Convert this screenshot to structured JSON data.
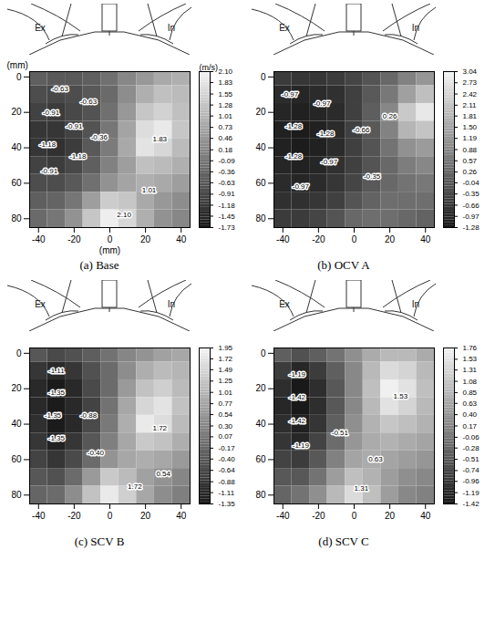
{
  "chart_data": [
    {
      "type": "heatmap",
      "title": "(a) Base",
      "x_label": "(mm)",
      "y_label": "(mm)",
      "valve_labels": [
        "Ex",
        "In"
      ],
      "xlim": [
        -45,
        45
      ],
      "xticks": [
        -40,
        -20,
        0,
        20,
        40
      ],
      "ylim": [
        -3,
        85
      ],
      "yticks": [
        0,
        20,
        40,
        60,
        80
      ],
      "cells": {
        "x": [
          -40,
          -30,
          -20,
          -10,
          0,
          10,
          20,
          30,
          40
        ],
        "y": [
          0,
          10,
          20,
          30,
          40,
          50,
          60,
          70,
          80
        ],
        "values": [
          [
            -0.5,
            -0.6,
            -0.6,
            -0.5,
            -0.2,
            0.2,
            0.5,
            0.8,
            0.9
          ],
          [
            -0.8,
            -0.9,
            -0.8,
            -0.6,
            -0.3,
            0.3,
            0.9,
            1.2,
            1.1
          ],
          [
            -1.0,
            -1.1,
            -0.9,
            -0.7,
            -0.2,
            0.5,
            1.3,
            1.5,
            1.2
          ],
          [
            -1.2,
            -1.2,
            -1.0,
            -0.7,
            -0.1,
            0.7,
            1.7,
            1.9,
            1.3
          ],
          [
            -1.2,
            -1.3,
            -1.1,
            -0.6,
            0.0,
            0.8,
            1.8,
            1.6,
            1.1
          ],
          [
            -1.0,
            -1.1,
            -0.9,
            -0.5,
            0.1,
            0.6,
            1.2,
            1.1,
            0.9
          ],
          [
            -0.8,
            -0.8,
            -0.6,
            -0.2,
            0.4,
            0.7,
            0.9,
            0.8,
            0.6
          ],
          [
            -0.5,
            -0.4,
            -0.1,
            0.6,
            1.4,
            1.3,
            0.8,
            0.5,
            0.3
          ],
          [
            -0.3,
            -0.1,
            0.4,
            1.3,
            2.0,
            1.6,
            0.9,
            0.4,
            0.2
          ]
        ]
      },
      "colorbar": {
        "label": "(m/s)",
        "lim": [
          -1.73,
          2.1
        ],
        "ticks": [
          {
            "value": 2.1,
            "label": "2.10"
          },
          1.83,
          1.55,
          1.28,
          1.01,
          0.73,
          0.46,
          0.18,
          -0.09,
          -0.36,
          -0.63,
          -0.91,
          -1.18,
          -1.45,
          -1.73
        ]
      },
      "labels": [
        {
          "x": -28,
          "y": 7,
          "text": "-0.63"
        },
        {
          "x": -12,
          "y": 14,
          "text": "-0.63"
        },
        {
          "x": -33,
          "y": 20,
          "text": "-0.91"
        },
        {
          "x": -20,
          "y": 28,
          "text": "-0.91"
        },
        {
          "x": -35,
          "y": 38,
          "text": "-1.18"
        },
        {
          "x": -18,
          "y": 45,
          "text": "-1.18"
        },
        {
          "x": -34,
          "y": 53,
          "text": "-0.91"
        },
        {
          "x": -6,
          "y": 34,
          "text": "-0.36"
        },
        {
          "x": 28,
          "y": 35,
          "text": "1.83"
        },
        {
          "x": 22,
          "y": 64,
          "text": "1.01"
        },
        {
          "x": 8,
          "y": 78,
          "text": "2.10"
        }
      ]
    },
    {
      "type": "heatmap",
      "title": "(b) OCV A",
      "valve_labels": [
        "Ex",
        "In"
      ],
      "xlim": [
        -45,
        45
      ],
      "xticks": [
        -40,
        -20,
        0,
        20,
        40
      ],
      "ylim": [
        -3,
        85
      ],
      "yticks": [
        0,
        20,
        40,
        60,
        80
      ],
      "cells": {
        "x": [
          -40,
          -30,
          -20,
          -10,
          0,
          10,
          20,
          30,
          40
        ],
        "y": [
          0,
          10,
          20,
          30,
          40,
          50,
          60,
          70,
          80
        ],
        "values": [
          [
            -0.6,
            -0.7,
            -0.7,
            -0.6,
            -0.4,
            -0.1,
            0.3,
            0.8,
            1.2
          ],
          [
            -0.9,
            -1.0,
            -0.9,
            -0.8,
            -0.5,
            0.0,
            0.6,
            1.4,
            2.0
          ],
          [
            -1.0,
            -1.1,
            -1.0,
            -0.9,
            -0.5,
            0.1,
            0.9,
            2.2,
            2.8
          ],
          [
            -1.1,
            -1.2,
            -1.1,
            -0.9,
            -0.5,
            0.0,
            0.8,
            1.8,
            2.1
          ],
          [
            -1.1,
            -1.2,
            -1.1,
            -0.9,
            -0.5,
            -0.1,
            0.5,
            1.1,
            1.3
          ],
          [
            -1.0,
            -1.1,
            -1.0,
            -0.8,
            -0.5,
            -0.1,
            0.3,
            0.7,
            0.9
          ],
          [
            -0.9,
            -1.0,
            -0.9,
            -0.7,
            -0.4,
            0.0,
            0.3,
            0.5,
            0.6
          ],
          [
            -0.8,
            -0.8,
            -0.7,
            -0.5,
            -0.1,
            0.2,
            0.4,
            0.4,
            0.4
          ],
          [
            -0.6,
            -0.6,
            -0.4,
            -0.1,
            0.3,
            0.4,
            0.4,
            0.3,
            0.2
          ]
        ]
      },
      "colorbar": {
        "lim": [
          -1.28,
          3.04
        ],
        "ticks": [
          3.04,
          2.73,
          2.42,
          2.11,
          1.81,
          {
            "value": 1.5,
            "label": "1.50"
          },
          1.19,
          0.88,
          0.57,
          0.26,
          -0.04,
          -0.35,
          -0.66,
          -0.97,
          -1.28
        ]
      },
      "labels": [
        {
          "x": -36,
          "y": 10,
          "text": "-0.97"
        },
        {
          "x": -18,
          "y": 15,
          "text": "-0.97"
        },
        {
          "x": -34,
          "y": 28,
          "text": "-1.28"
        },
        {
          "x": -16,
          "y": 32,
          "text": "-1.28"
        },
        {
          "x": -34,
          "y": 45,
          "text": "-1.28"
        },
        {
          "x": -14,
          "y": 48,
          "text": "-0.97"
        },
        {
          "x": 4,
          "y": 30,
          "text": "-0.66"
        },
        {
          "x": 20,
          "y": 22,
          "text": "0.26"
        },
        {
          "x": -30,
          "y": 62,
          "text": "-0.97"
        },
        {
          "x": 10,
          "y": 56,
          "text": "-0.35"
        }
      ]
    },
    {
      "type": "heatmap",
      "title": "(c) SCV B",
      "valve_labels": [
        "Ex",
        "In"
      ],
      "xlim": [
        -45,
        45
      ],
      "xticks": [
        -40,
        -20,
        0,
        20,
        40
      ],
      "ylim": [
        -3,
        85
      ],
      "yticks": [
        0,
        20,
        40,
        60,
        80
      ],
      "cells": {
        "x": [
          -40,
          -30,
          -20,
          -10,
          0,
          10,
          20,
          30,
          40
        ],
        "y": [
          0,
          10,
          20,
          30,
          40,
          50,
          60,
          70,
          80
        ],
        "values": [
          [
            -0.4,
            -0.6,
            -0.5,
            -0.3,
            0.0,
            0.3,
            0.5,
            0.7,
            0.8
          ],
          [
            -0.9,
            -1.1,
            -0.9,
            -0.5,
            -0.1,
            0.4,
            0.9,
            1.1,
            1.0
          ],
          [
            -1.1,
            -1.3,
            -1.1,
            -0.6,
            -0.1,
            0.6,
            1.2,
            1.4,
            1.1
          ],
          [
            -1.1,
            -1.3,
            -1.1,
            -0.7,
            0.0,
            0.8,
            1.5,
            1.7,
            1.2
          ],
          [
            -1.0,
            -1.3,
            -1.1,
            -0.6,
            0.1,
            0.9,
            1.8,
            1.6,
            1.1
          ],
          [
            -0.9,
            -1.2,
            -0.9,
            -0.4,
            0.2,
            0.8,
            1.3,
            1.2,
            0.9
          ],
          [
            -0.7,
            -0.9,
            -0.6,
            -0.1,
            0.5,
            0.8,
            0.9,
            0.8,
            0.6
          ],
          [
            -0.4,
            -0.5,
            -0.1,
            0.6,
            1.3,
            1.1,
            0.7,
            0.5,
            0.3
          ],
          [
            -0.2,
            -0.1,
            0.4,
            1.2,
            1.8,
            1.4,
            0.8,
            0.4,
            0.2
          ]
        ]
      },
      "colorbar": {
        "lim": [
          -1.35,
          1.95
        ],
        "ticks": [
          1.95,
          1.72,
          1.49,
          1.25,
          1.01,
          0.77,
          0.54,
          {
            "value": 0.3,
            "label": "0.30"
          },
          0.07,
          -0.17,
          {
            "value": -0.4,
            "label": "-0.40"
          },
          -0.64,
          -0.88,
          -1.11,
          -1.35
        ]
      },
      "labels": [
        {
          "x": -30,
          "y": 10,
          "text": "-1.11"
        },
        {
          "x": -30,
          "y": 22,
          "text": "-1.35"
        },
        {
          "x": -32,
          "y": 35,
          "text": "-1.35"
        },
        {
          "x": -30,
          "y": 48,
          "text": "-1.35"
        },
        {
          "x": -12,
          "y": 35,
          "text": "-0.88"
        },
        {
          "x": -8,
          "y": 56,
          "text": "-0.40"
        },
        {
          "x": 28,
          "y": 42,
          "text": "1.72"
        },
        {
          "x": 14,
          "y": 75,
          "text": "1.72"
        },
        {
          "x": 30,
          "y": 68,
          "text": "0.54"
        }
      ]
    },
    {
      "type": "heatmap",
      "title": "(d) SCV C",
      "valve_labels": [
        "Ex",
        "In"
      ],
      "xlim": [
        -45,
        45
      ],
      "xticks": [
        -40,
        -20,
        0,
        20,
        40
      ],
      "ylim": [
        -3,
        85
      ],
      "yticks": [
        0,
        20,
        40,
        60,
        80
      ],
      "cells": {
        "x": [
          -40,
          -30,
          -20,
          -10,
          0,
          10,
          20,
          30,
          40
        ],
        "y": [
          0,
          10,
          20,
          30,
          40,
          50,
          60,
          70,
          80
        ],
        "values": [
          [
            -0.4,
            -0.6,
            -0.4,
            -0.1,
            0.3,
            0.7,
            0.9,
            0.9,
            0.7
          ],
          [
            -0.9,
            -1.2,
            -0.9,
            -0.4,
            0.2,
            0.9,
            1.4,
            1.3,
            0.9
          ],
          [
            -1.1,
            -1.4,
            -1.1,
            -0.5,
            0.2,
            1.0,
            1.7,
            1.5,
            1.0
          ],
          [
            -1.2,
            -1.4,
            -1.1,
            -0.5,
            0.2,
            0.9,
            1.5,
            1.3,
            0.9
          ],
          [
            -1.1,
            -1.3,
            -1.0,
            -0.4,
            0.3,
            0.8,
            1.1,
            1.0,
            0.8
          ],
          [
            -1.0,
            -1.2,
            -0.8,
            -0.2,
            0.4,
            0.7,
            0.8,
            0.7,
            0.6
          ],
          [
            -0.8,
            -0.9,
            -0.5,
            0.1,
            0.6,
            0.7,
            0.6,
            0.5,
            0.4
          ],
          [
            -0.5,
            -0.5,
            -0.1,
            0.5,
            1.0,
            0.8,
            0.5,
            0.3,
            0.2
          ],
          [
            -0.3,
            -0.1,
            0.3,
            0.9,
            1.4,
            1.0,
            0.5,
            0.2,
            0.1
          ]
        ]
      },
      "colorbar": {
        "lim": [
          -1.42,
          1.76
        ],
        "ticks": [
          1.76,
          1.53,
          1.31,
          1.08,
          0.85,
          0.63,
          {
            "value": 0.4,
            "label": "0.40"
          },
          0.17,
          -0.06,
          -0.28,
          -0.51,
          -0.74,
          -0.96,
          -1.19,
          -1.42
        ]
      },
      "labels": [
        {
          "x": -32,
          "y": 12,
          "text": "-1.19"
        },
        {
          "x": -32,
          "y": 25,
          "text": "-1.42"
        },
        {
          "x": -32,
          "y": 38,
          "text": "-1.42"
        },
        {
          "x": -30,
          "y": 52,
          "text": "-1.19"
        },
        {
          "x": -8,
          "y": 45,
          "text": "-0.51"
        },
        {
          "x": 26,
          "y": 24,
          "text": "1.53"
        },
        {
          "x": 12,
          "y": 60,
          "text": "0.63"
        },
        {
          "x": 4,
          "y": 76,
          "text": "1.31"
        }
      ]
    }
  ]
}
